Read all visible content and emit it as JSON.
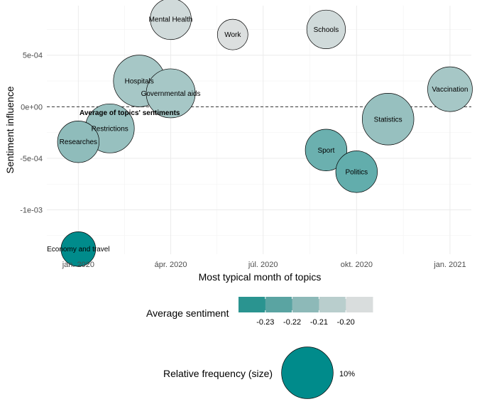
{
  "chart_data": {
    "type": "scatter",
    "xlabel": "Most typical month of topics",
    "ylabel": "Sentiment influence",
    "x_range": [
      "2019-12-01",
      "2021-01-22"
    ],
    "y_range": [
      -0.00143,
      0.00098
    ],
    "x_ticks": [
      {
        "date": "2020-01-01",
        "label": "jan. 2020"
      },
      {
        "date": "2020-04-01",
        "label": "ápr. 2020"
      },
      {
        "date": "2020-07-01",
        "label": "júl. 2020"
      },
      {
        "date": "2020-10-01",
        "label": "okt. 2020"
      },
      {
        "date": "2021-01-01",
        "label": "jan. 2021"
      }
    ],
    "y_ticks": [
      {
        "value": 0.0005,
        "label": "5e-04"
      },
      {
        "value": 0,
        "label": "0e+00"
      },
      {
        "value": -0.0005,
        "label": "-5e-04"
      },
      {
        "value": -0.001,
        "label": "-1e-03"
      }
    ],
    "grid": true,
    "reference_line": {
      "y": 0,
      "style": "dashed"
    },
    "annotation": "Average of topics' sentiments",
    "points": [
      {
        "label": "Mental Health",
        "date": "2020-04-01",
        "y": 0.00085,
        "sentiment": -0.203,
        "size": 0.063
      },
      {
        "label": "Work",
        "date": "2020-06-01",
        "y": 0.0007,
        "sentiment": -0.2,
        "size": 0.035
      },
      {
        "label": "Schools",
        "date": "2020-09-01",
        "y": 0.00075,
        "sentiment": -0.203,
        "size": 0.056
      },
      {
        "label": "Hospitals",
        "date": "2020-03-01",
        "y": 0.00025,
        "sentiment": -0.214,
        "size": 0.1
      },
      {
        "label": "Governmental aids",
        "date": "2020-04-01",
        "y": 0.00013,
        "sentiment": -0.214,
        "size": 0.09
      },
      {
        "label": "Vaccination",
        "date": "2021-01-01",
        "y": 0.00017,
        "sentiment": -0.214,
        "size": 0.075
      },
      {
        "label": "Statistics",
        "date": "2020-11-01",
        "y": -0.00012,
        "sentiment": -0.218,
        "size": 0.1
      },
      {
        "label": "Restrictions",
        "date": "2020-02-01",
        "y": -0.00021,
        "sentiment": -0.218,
        "size": 0.09
      },
      {
        "label": "Researches",
        "date": "2020-01-01",
        "y": -0.00034,
        "sentiment": -0.22,
        "size": 0.065
      },
      {
        "label": "Sport",
        "date": "2020-09-01",
        "y": -0.00042,
        "sentiment": -0.224,
        "size": 0.065
      },
      {
        "label": "Politics",
        "date": "2020-10-01",
        "y": -0.00063,
        "sentiment": -0.225,
        "size": 0.065
      },
      {
        "label": "Economy and travel",
        "date": "2020-01-01",
        "y": -0.00138,
        "sentiment": -0.236,
        "size": 0.045
      }
    ],
    "color_legend": {
      "title": "Average sentiment",
      "colors": [
        "#2a9490",
        "#5aa4a2",
        "#8db9b8",
        "#b9cecd",
        "#d9dddd"
      ],
      "tick_labels": [
        "-0.23",
        "-0.22",
        "-0.21",
        "-0.20"
      ],
      "color_stops": [
        {
          "value": -0.236,
          "color": "#008b8b"
        },
        {
          "value": -0.22,
          "color": "#8fbcbb"
        },
        {
          "value": -0.2,
          "color": "#dcdfdf"
        }
      ]
    },
    "size_legend": {
      "title": "Relative frequency (size)",
      "value": 0.1,
      "label": "10%"
    }
  }
}
